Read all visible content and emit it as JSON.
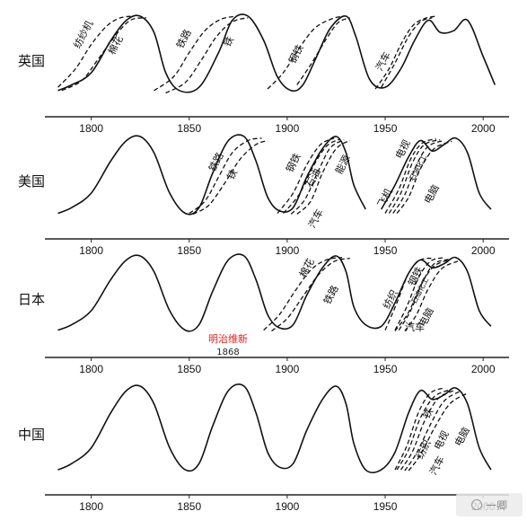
{
  "watermark": {
    "text": "一卿"
  },
  "chart_data": [
    {
      "type": "line",
      "panel": "英国",
      "x_ticks": [
        1800,
        1850,
        1900,
        1950,
        2000
      ],
      "xlim": [
        1780,
        2010
      ],
      "y_axis": "none",
      "series": [
        {
          "name": "",
          "style": "solid",
          "x": [
            1783,
            1790,
            1800,
            1810,
            1818,
            1825,
            1832,
            1838,
            1845,
            1855,
            1865,
            1872,
            1880,
            1888,
            1895,
            1902,
            1908,
            1915,
            1922,
            1930,
            1935,
            1942,
            1950,
            1958,
            1965,
            1972,
            1978,
            1985,
            1992,
            2000,
            2006
          ],
          "y": [
            0.08,
            0.15,
            0.3,
            0.7,
            0.95,
            1.0,
            0.8,
            0.3,
            0.08,
            0.12,
            0.55,
            0.95,
            1.0,
            0.7,
            0.25,
            0.08,
            0.15,
            0.5,
            0.85,
            1.0,
            0.75,
            0.22,
            0.12,
            0.35,
            0.7,
            0.95,
            0.8,
            0.82,
            0.95,
            0.5,
            0.15
          ]
        },
        {
          "name": "纺纱机",
          "style": "dashed",
          "x": [
            1783,
            1792,
            1800,
            1808,
            1815,
            1822
          ],
          "y": [
            0.12,
            0.35,
            0.65,
            0.88,
            0.98,
            1.0
          ]
        },
        {
          "name": "棉花",
          "style": "dashed",
          "x": [
            1785,
            1795,
            1803,
            1812,
            1820,
            1828
          ],
          "y": [
            0.08,
            0.2,
            0.45,
            0.75,
            0.95,
            0.98
          ]
        },
        {
          "name": "铁路",
          "style": "dashed",
          "x": [
            1832,
            1842,
            1850,
            1858,
            1866,
            1874
          ],
          "y": [
            0.08,
            0.25,
            0.55,
            0.82,
            0.96,
            1.0
          ]
        },
        {
          "name": "铁",
          "style": "dashed",
          "x": [
            1838,
            1848,
            1856,
            1864,
            1872,
            1880
          ],
          "y": [
            0.05,
            0.18,
            0.45,
            0.75,
            0.93,
            0.98
          ]
        },
        {
          "name": "钢铁",
          "style": "dashed",
          "x": [
            1890,
            1898,
            1906,
            1914,
            1922,
            1928
          ],
          "y": [
            0.1,
            0.3,
            0.6,
            0.85,
            0.96,
            1.0
          ]
        },
        {
          "name": "",
          "style": "dashed",
          "x": [
            1905,
            1912,
            1920,
            1926,
            1932
          ],
          "y": [
            0.15,
            0.4,
            0.72,
            0.92,
            0.98
          ]
        },
        {
          "name": "汽车",
          "style": "dashed",
          "x": [
            1945,
            1952,
            1958,
            1964,
            1970,
            1976
          ],
          "y": [
            0.1,
            0.35,
            0.65,
            0.88,
            0.97,
            1.0
          ]
        },
        {
          "name": "",
          "style": "dashed",
          "x": [
            1948,
            1955,
            1962,
            1968,
            1974
          ],
          "y": [
            0.12,
            0.42,
            0.75,
            0.93,
            0.98
          ]
        }
      ]
    },
    {
      "type": "line",
      "panel": "美国",
      "x_ticks": [
        1800,
        1850,
        1900,
        1950,
        2000
      ],
      "xlim": [
        1780,
        2010
      ],
      "y_axis": "none",
      "series": [
        {
          "name": "",
          "style": "solid",
          "x": [
            1783,
            1790,
            1800,
            1810,
            1818,
            1825,
            1832,
            1840,
            1848,
            1855,
            1862,
            1870,
            1878,
            1884,
            1890,
            1896,
            1903,
            1910,
            1918,
            1925,
            1930,
            1934,
            1940
          ],
          "y": [
            0.05,
            0.12,
            0.3,
            0.7,
            0.95,
            1.0,
            0.8,
            0.3,
            0.05,
            0.12,
            0.55,
            0.95,
            1.0,
            0.7,
            0.25,
            0.08,
            0.12,
            0.5,
            0.85,
            1.0,
            0.8,
            0.4,
            0.1
          ]
        },
        {
          "name": "",
          "style": "solid",
          "x": [
            1948,
            1955,
            1962,
            1968,
            1974,
            1980,
            1986,
            1992,
            1998,
            2004
          ],
          "y": [
            0.1,
            0.4,
            0.75,
            0.95,
            0.82,
            0.9,
            0.98,
            0.8,
            0.3,
            0.1
          ]
        },
        {
          "name": "铁路",
          "style": "dashed",
          "x": [
            1850,
            1858,
            1865,
            1872,
            1880,
            1887
          ],
          "y": [
            0.05,
            0.2,
            0.5,
            0.8,
            0.95,
            0.98
          ]
        },
        {
          "name": "铁",
          "style": "dashed",
          "x": [
            1852,
            1860,
            1868,
            1876,
            1884,
            1890
          ],
          "y": [
            0.04,
            0.15,
            0.42,
            0.72,
            0.9,
            0.95
          ]
        },
        {
          "name": "钢铁",
          "style": "dashed",
          "x": [
            1895,
            1903,
            1910,
            1917,
            1924
          ],
          "y": [
            0.05,
            0.3,
            0.65,
            0.9,
            0.98
          ]
        },
        {
          "name": "石油",
          "style": "dashed",
          "x": [
            1898,
            1906,
            1913,
            1920,
            1927
          ],
          "y": [
            0.05,
            0.28,
            0.62,
            0.88,
            0.97
          ]
        },
        {
          "name": "汽车",
          "style": "dashed",
          "x": [
            1902,
            1909,
            1916,
            1922,
            1929
          ],
          "y": [
            0.04,
            0.22,
            0.58,
            0.86,
            0.96
          ]
        },
        {
          "name": "能源",
          "style": "dashed",
          "x": [
            1905,
            1912,
            1918,
            1925,
            1932
          ],
          "y": [
            0.04,
            0.2,
            0.55,
            0.85,
            0.95
          ]
        },
        {
          "name": "电视",
          "style": "dashed",
          "x": [
            1950,
            1957,
            1963,
            1969,
            1976
          ],
          "y": [
            0.05,
            0.35,
            0.72,
            0.92,
            0.97
          ]
        },
        {
          "name": "飞机",
          "style": "dashed",
          "x": [
            1952,
            1958,
            1964,
            1970,
            1978
          ],
          "y": [
            0.05,
            0.3,
            0.68,
            0.9,
            0.96
          ]
        },
        {
          "name": "石油化工",
          "style": "dashed",
          "x": [
            1954,
            1960,
            1966,
            1972,
            1980
          ],
          "y": [
            0.05,
            0.28,
            0.65,
            0.88,
            0.95
          ]
        },
        {
          "name": "电脑",
          "style": "dashed",
          "x": [
            1956,
            1962,
            1968,
            1975,
            1984
          ],
          "y": [
            0.05,
            0.25,
            0.6,
            0.85,
            0.94
          ]
        }
      ]
    },
    {
      "type": "line",
      "panel": "日本",
      "x_ticks": [
        1800,
        1850,
        1900,
        1950,
        2000
      ],
      "xlim": [
        1780,
        2010
      ],
      "y_axis": "none",
      "annotations": [
        {
          "text": "明治维新",
          "color": "#e02020"
        },
        {
          "text": "1868",
          "color": "#222222"
        }
      ],
      "series": [
        {
          "name": "",
          "style": "solid",
          "x": [
            1783,
            1790,
            1800,
            1810,
            1818,
            1825,
            1832,
            1840,
            1848,
            1855,
            1862,
            1870,
            1878,
            1884,
            1890,
            1896,
            1903,
            1910,
            1918,
            1925,
            1930,
            1934,
            1940,
            1948,
            1955,
            1962,
            1968,
            1974,
            1980,
            1986,
            1992,
            1998,
            2004
          ],
          "y": [
            0.05,
            0.12,
            0.3,
            0.7,
            0.95,
            1.0,
            0.8,
            0.3,
            0.05,
            0.12,
            0.55,
            0.95,
            1.0,
            0.7,
            0.25,
            0.08,
            0.12,
            0.5,
            0.85,
            1.0,
            0.8,
            0.35,
            0.12,
            0.1,
            0.4,
            0.78,
            0.95,
            0.85,
            0.9,
            0.98,
            0.8,
            0.3,
            0.1
          ]
        },
        {
          "name": "棉花",
          "style": "dashed",
          "x": [
            1888,
            1896,
            1904,
            1912,
            1920,
            1928
          ],
          "y": [
            0.05,
            0.25,
            0.55,
            0.82,
            0.95,
            0.98
          ]
        },
        {
          "name": "铁路",
          "style": "dashed",
          "x": [
            1892,
            1900,
            1908,
            1916,
            1924,
            1932
          ],
          "y": [
            0.04,
            0.2,
            0.48,
            0.76,
            0.93,
            0.97
          ]
        },
        {
          "name": "钢铁",
          "style": "dashed",
          "x": [
            1955,
            1961,
            1967,
            1973,
            1980
          ],
          "y": [
            0.05,
            0.35,
            0.72,
            0.93,
            0.98
          ]
        },
        {
          "name": "纺织",
          "style": "dashed",
          "x": [
            1950,
            1956,
            1962,
            1968,
            1975
          ],
          "y": [
            0.05,
            0.4,
            0.78,
            0.95,
            0.97
          ]
        },
        {
          "name": "石油化工",
          "style": "dashed",
          "x": [
            1957,
            1963,
            1969,
            1975,
            1983
          ],
          "y": [
            0.05,
            0.3,
            0.66,
            0.9,
            0.96
          ]
        },
        {
          "name": "汽车",
          "style": "dashed",
          "x": [
            1955,
            1962,
            1968,
            1975,
            1983
          ],
          "y": [
            0.04,
            0.28,
            0.62,
            0.87,
            0.95
          ]
        },
        {
          "name": "电脑",
          "style": "dashed",
          "x": [
            1960,
            1966,
            1972,
            1979,
            1988
          ],
          "y": [
            0.04,
            0.25,
            0.58,
            0.84,
            0.94
          ]
        }
      ]
    },
    {
      "type": "line",
      "panel": "中国",
      "x_ticks": [
        1800,
        1850,
        1900,
        1950,
        2000
      ],
      "xlim": [
        1780,
        2010
      ],
      "y_axis": "none",
      "series": [
        {
          "name": "",
          "style": "solid",
          "x": [
            1783,
            1790,
            1800,
            1810,
            1818,
            1825,
            1832,
            1840,
            1848,
            1855,
            1862,
            1870,
            1878,
            1884,
            1890,
            1896,
            1903,
            1910,
            1918,
            1925,
            1930,
            1934,
            1940,
            1948,
            1955,
            1962,
            1968,
            1974,
            1980,
            1986,
            1992,
            1998,
            2004
          ],
          "y": [
            0.05,
            0.12,
            0.3,
            0.7,
            0.95,
            1.0,
            0.8,
            0.3,
            0.05,
            0.12,
            0.55,
            0.95,
            1.0,
            0.7,
            0.25,
            0.08,
            0.12,
            0.5,
            0.85,
            1.0,
            0.8,
            0.35,
            0.05,
            0.05,
            0.25,
            0.7,
            0.95,
            0.85,
            0.9,
            0.98,
            0.8,
            0.3,
            0.05
          ]
        },
        {
          "name": "铁",
          "style": "dashed",
          "x": [
            1955,
            1961,
            1967,
            1973,
            1980
          ],
          "y": [
            0.05,
            0.32,
            0.7,
            0.92,
            0.98
          ]
        },
        {
          "name": "纺织",
          "style": "dashed",
          "x": [
            1956,
            1962,
            1968,
            1975,
            1983
          ],
          "y": [
            0.05,
            0.28,
            0.64,
            0.88,
            0.96
          ]
        },
        {
          "name": "电视",
          "style": "dashed",
          "x": [
            1958,
            1964,
            1970,
            1977,
            1985
          ],
          "y": [
            0.05,
            0.26,
            0.6,
            0.86,
            0.95
          ]
        },
        {
          "name": "汽车",
          "style": "dashed",
          "x": [
            1960,
            1966,
            1973,
            1980,
            1988
          ],
          "y": [
            0.04,
            0.24,
            0.56,
            0.83,
            0.94
          ]
        },
        {
          "name": "电脑",
          "style": "dashed",
          "x": [
            1962,
            1968,
            1975,
            1983,
            1992
          ],
          "y": [
            0.04,
            0.22,
            0.52,
            0.8,
            0.92
          ]
        }
      ]
    }
  ]
}
